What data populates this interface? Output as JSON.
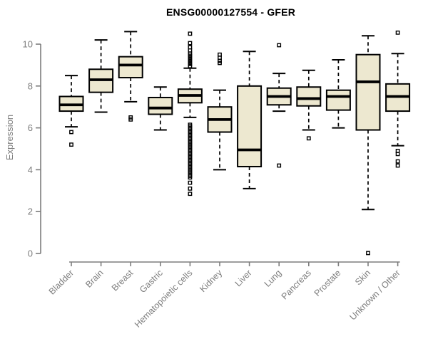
{
  "title": "ENSG00000127554 - GFER",
  "chart_data": {
    "type": "boxplot",
    "title": "ENSG00000127554 - GFER",
    "xlabel": "",
    "ylabel": "Expression",
    "ylim": [
      0,
      10
    ],
    "yticks": [
      0,
      2,
      4,
      6,
      8,
      10
    ],
    "grid": false,
    "legend": "none",
    "colors": {
      "box_fill": "#EDE8D0",
      "box_stroke": "#000000",
      "axis": "#7d7d7d",
      "tick_label": "#7d7d7d",
      "title": "#000000"
    },
    "categories": [
      "Bladder",
      "Brain",
      "Breast",
      "Gastric",
      "Hematopoietic cells",
      "Kidney",
      "Liver",
      "Lung",
      "Pancreas",
      "Prostate",
      "Skin",
      "Unknown / Other"
    ],
    "boxes": [
      {
        "category": "Bladder",
        "whisker_low": 6.05,
        "q1": 6.8,
        "median": 7.1,
        "q3": 7.5,
        "whisker_high": 8.5,
        "outliers": [
          5.8,
          5.2
        ]
      },
      {
        "category": "Brain",
        "whisker_low": 6.75,
        "q1": 7.7,
        "median": 8.3,
        "q3": 8.8,
        "whisker_high": 10.2,
        "outliers": []
      },
      {
        "category": "Breast",
        "whisker_low": 7.25,
        "q1": 8.4,
        "median": 9.0,
        "q3": 9.4,
        "whisker_high": 10.6,
        "outliers": [
          6.5,
          6.4
        ]
      },
      {
        "category": "Gastric",
        "whisker_low": 5.9,
        "q1": 6.65,
        "median": 6.95,
        "q3": 7.45,
        "whisker_high": 7.95,
        "outliers": []
      },
      {
        "category": "Hematopoietic cells",
        "whisker_low": 6.5,
        "q1": 7.2,
        "median": 7.55,
        "q3": 7.85,
        "whisker_high": 8.85,
        "outliers": [
          10.5,
          10.05,
          9.85,
          9.7,
          9.55,
          9.45,
          9.35,
          9.25,
          9.15,
          9.05,
          8.95,
          6.15,
          6.08,
          6.01,
          5.94,
          5.87,
          5.8,
          5.73,
          5.66,
          5.59,
          5.52,
          5.45,
          5.38,
          5.31,
          5.24,
          5.17,
          5.1,
          5.03,
          4.96,
          4.89,
          4.82,
          4.75,
          4.68,
          4.61,
          4.54,
          4.47,
          4.4,
          4.33,
          4.26,
          4.19,
          4.12,
          4.05,
          3.98,
          3.91,
          3.84,
          3.77,
          3.7,
          3.63,
          3.38,
          3.1,
          2.85
        ]
      },
      {
        "category": "Kidney",
        "whisker_low": 4.0,
        "q1": 5.8,
        "median": 6.4,
        "q3": 7.0,
        "whisker_high": 7.8,
        "outliers": [
          9.5,
          9.35,
          9.2,
          9.1
        ]
      },
      {
        "category": "Liver",
        "whisker_low": 3.1,
        "q1": 4.15,
        "median": 4.95,
        "q3": 8.0,
        "whisker_high": 9.65,
        "outliers": []
      },
      {
        "category": "Lung",
        "whisker_low": 6.8,
        "q1": 7.1,
        "median": 7.5,
        "q3": 7.9,
        "whisker_high": 8.6,
        "outliers": [
          9.95,
          4.2
        ]
      },
      {
        "category": "Pancreas",
        "whisker_low": 5.9,
        "q1": 7.05,
        "median": 7.4,
        "q3": 7.95,
        "whisker_high": 8.75,
        "outliers": [
          5.5
        ]
      },
      {
        "category": "Prostate",
        "whisker_low": 6.0,
        "q1": 6.85,
        "median": 7.5,
        "q3": 7.8,
        "whisker_high": 9.25,
        "outliers": []
      },
      {
        "category": "Skin",
        "whisker_low": 2.1,
        "q1": 5.9,
        "median": 8.2,
        "q3": 9.5,
        "whisker_high": 10.4,
        "outliers": [
          0.02
        ]
      },
      {
        "category": "Unknown / Other",
        "whisker_low": 5.15,
        "q1": 6.8,
        "median": 7.5,
        "q3": 8.1,
        "whisker_high": 9.55,
        "outliers": [
          10.55,
          4.9,
          4.75,
          4.4,
          4.2
        ]
      }
    ]
  }
}
